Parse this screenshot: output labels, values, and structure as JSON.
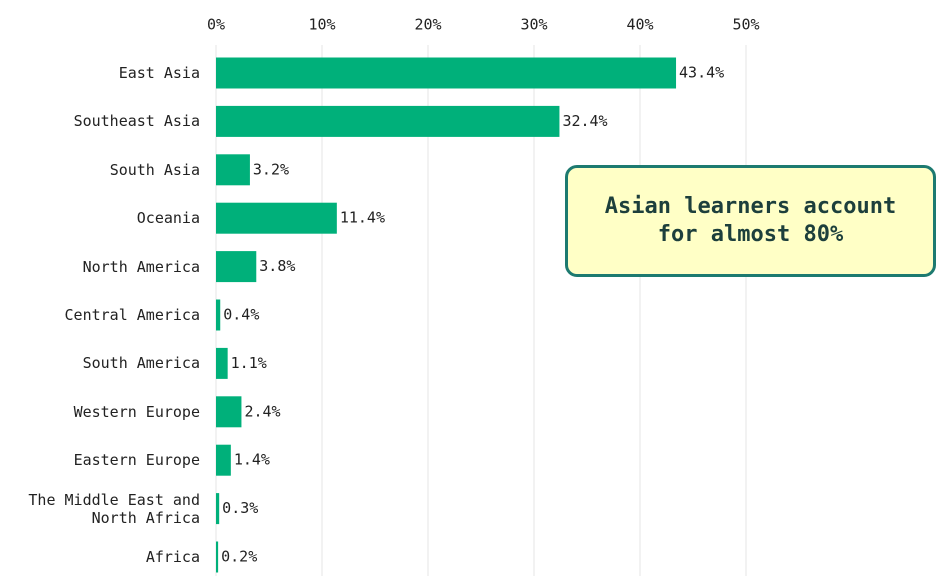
{
  "chart_data": {
    "type": "bar",
    "orientation": "horizontal",
    "color": "#00b07a",
    "grid": true,
    "categories": [
      "East Asia",
      "Southeast Asia",
      "South Asia",
      "Oceania",
      "North America",
      "Central America",
      "South America",
      "Western Europe",
      "Eastern Europe",
      "The Middle East and\nNorth Africa",
      "Africa"
    ],
    "values": [
      43.4,
      32.4,
      3.2,
      11.4,
      3.8,
      0.4,
      1.1,
      2.4,
      1.4,
      0.3,
      0.2
    ],
    "value_labels": [
      "43.4%",
      "32.4%",
      "3.2%",
      "11.4%",
      "3.8%",
      "0.4%",
      "1.1%",
      "2.4%",
      "1.4%",
      "0.3%",
      "0.2%"
    ],
    "xlim": [
      0,
      50
    ],
    "xticks": [
      {
        "value": 0,
        "label": "0%"
      },
      {
        "value": 10,
        "label": "10%"
      },
      {
        "value": 20,
        "label": "20%"
      },
      {
        "value": 30,
        "label": "30%"
      },
      {
        "value": 40,
        "label": "40%"
      },
      {
        "value": 50,
        "label": "50%"
      }
    ],
    "annotation": "Asian learners account\nfor almost 80%"
  }
}
